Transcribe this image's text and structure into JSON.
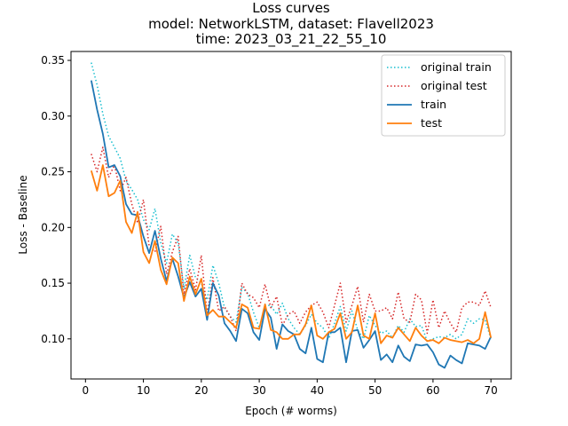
{
  "chart_data": {
    "type": "line",
    "title_lines": [
      "Loss curves",
      "model: NetworkLSTM, dataset: Flavell2023",
      "time: 2023_03_21_22_55_10"
    ],
    "xlabel": "Epoch (# worms)",
    "ylabel": "Loss - Baseline",
    "xlim": [
      -2.5,
      73.5
    ],
    "ylim": [
      0.064,
      0.358
    ],
    "xticks": [
      0,
      10,
      20,
      30,
      40,
      50,
      60,
      70
    ],
    "xtick_labels": [
      "0",
      "10",
      "20",
      "30",
      "40",
      "50",
      "60",
      "70"
    ],
    "yticks": [
      0.1,
      0.15,
      0.2,
      0.25,
      0.3,
      0.35
    ],
    "ytick_labels": [
      "0.10",
      "0.15",
      "0.20",
      "0.25",
      "0.30",
      "0.35"
    ],
    "grid": false,
    "legend_position": "top-right",
    "x": [
      1,
      2,
      3,
      4,
      5,
      6,
      7,
      8,
      9,
      10,
      11,
      12,
      13,
      14,
      15,
      16,
      17,
      18,
      19,
      20,
      21,
      22,
      23,
      24,
      25,
      26,
      27,
      28,
      29,
      30,
      31,
      32,
      33,
      34,
      35,
      36,
      37,
      38,
      39,
      40,
      41,
      42,
      43,
      44,
      45,
      46,
      47,
      48,
      49,
      50,
      51,
      52,
      53,
      54,
      55,
      56,
      57,
      58,
      59,
      60,
      61,
      62,
      63,
      64,
      65,
      66,
      67,
      68,
      69,
      70
    ],
    "series": [
      {
        "name": "original train",
        "color": "#17becf",
        "dash": "dotted",
        "values": [
          0.348,
          0.328,
          0.302,
          0.282,
          0.272,
          0.262,
          0.242,
          0.234,
          0.225,
          0.207,
          0.198,
          0.217,
          0.186,
          0.168,
          0.194,
          0.186,
          0.145,
          0.175,
          0.155,
          0.15,
          0.135,
          0.166,
          0.15,
          0.128,
          0.12,
          0.115,
          0.146,
          0.141,
          0.124,
          0.11,
          0.13,
          0.13,
          0.122,
          0.132,
          0.118,
          0.11,
          0.104,
          0.112,
          0.122,
          0.114,
          0.11,
          0.1,
          0.114,
          0.129,
          0.107,
          0.125,
          0.108,
          0.1,
          0.121,
          0.112,
          0.105,
          0.107,
          0.101,
          0.112,
          0.106,
          0.118,
          0.111,
          0.112,
          0.098,
          0.1,
          0.102,
          0.101,
          0.104,
          0.1,
          0.104,
          0.118,
          0.114,
          0.118,
          0.117,
          0.1
        ]
      },
      {
        "name": "original test",
        "color": "#d62728",
        "dash": "dotted",
        "values": [
          0.266,
          0.25,
          0.272,
          0.245,
          0.256,
          0.233,
          0.245,
          0.221,
          0.204,
          0.225,
          0.183,
          0.178,
          0.201,
          0.158,
          0.178,
          0.192,
          0.14,
          0.163,
          0.144,
          0.175,
          0.122,
          0.155,
          0.125,
          0.129,
          0.12,
          0.107,
          0.15,
          0.14,
          0.137,
          0.128,
          0.149,
          0.128,
          0.138,
          0.112,
          0.122,
          0.125,
          0.114,
          0.124,
          0.13,
          0.133,
          0.124,
          0.11,
          0.13,
          0.15,
          0.115,
          0.13,
          0.147,
          0.115,
          0.14,
          0.125,
          0.125,
          0.128,
          0.118,
          0.142,
          0.118,
          0.115,
          0.14,
          0.135,
          0.105,
          0.135,
          0.11,
          0.125,
          0.114,
          0.106,
          0.128,
          0.133,
          0.133,
          0.13,
          0.143,
          0.128
        ]
      },
      {
        "name": "train",
        "color": "#1f77b4",
        "dash": "solid",
        "values": [
          0.332,
          0.306,
          0.284,
          0.254,
          0.256,
          0.246,
          0.221,
          0.212,
          0.211,
          0.192,
          0.177,
          0.197,
          0.172,
          0.152,
          0.172,
          0.156,
          0.137,
          0.151,
          0.138,
          0.145,
          0.117,
          0.15,
          0.139,
          0.114,
          0.107,
          0.098,
          0.127,
          0.123,
          0.106,
          0.099,
          0.127,
          0.119,
          0.091,
          0.113,
          0.107,
          0.104,
          0.091,
          0.087,
          0.11,
          0.082,
          0.079,
          0.106,
          0.106,
          0.11,
          0.079,
          0.107,
          0.108,
          0.092,
          0.099,
          0.107,
          0.081,
          0.086,
          0.079,
          0.094,
          0.084,
          0.08,
          0.095,
          0.094,
          0.095,
          0.088,
          0.077,
          0.074,
          0.085,
          0.081,
          0.078,
          0.096,
          0.095,
          0.094,
          0.091,
          0.102
        ]
      },
      {
        "name": "test",
        "color": "#ff7f0e",
        "dash": "solid",
        "values": [
          0.251,
          0.233,
          0.256,
          0.228,
          0.231,
          0.242,
          0.205,
          0.195,
          0.214,
          0.178,
          0.168,
          0.188,
          0.162,
          0.149,
          0.173,
          0.168,
          0.134,
          0.156,
          0.14,
          0.154,
          0.121,
          0.126,
          0.12,
          0.12,
          0.115,
          0.11,
          0.131,
          0.128,
          0.11,
          0.109,
          0.131,
          0.108,
          0.106,
          0.1,
          0.1,
          0.104,
          0.104,
          0.113,
          0.13,
          0.103,
          0.1,
          0.106,
          0.109,
          0.123,
          0.1,
          0.106,
          0.13,
          0.103,
          0.1,
          0.123,
          0.096,
          0.103,
          0.101,
          0.11,
          0.104,
          0.098,
          0.11,
          0.103,
          0.098,
          0.099,
          0.096,
          0.101,
          0.099,
          0.098,
          0.097,
          0.099,
          0.096,
          0.1,
          0.124,
          0.101
        ]
      }
    ]
  }
}
